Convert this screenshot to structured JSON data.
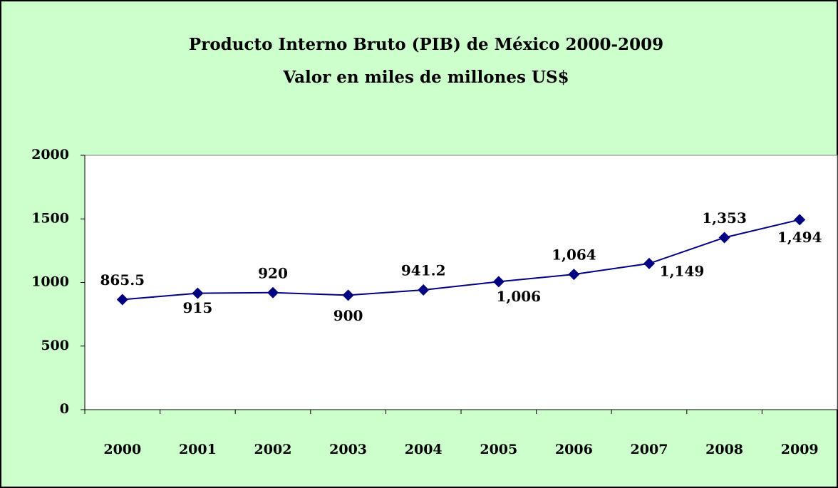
{
  "chart_data": {
    "type": "line",
    "title": "Producto Interno Bruto (PIB) de México 2000-2009",
    "subtitle": "Valor en miles de millones US$",
    "categories": [
      "2000",
      "2001",
      "2002",
      "2003",
      "2004",
      "2005",
      "2006",
      "2007",
      "2008",
      "2009"
    ],
    "series": [
      {
        "name": "PIB",
        "color": "#000080",
        "values": [
          865.5,
          915,
          920,
          900,
          941.2,
          1006,
          1064,
          1149,
          1353,
          1494
        ],
        "value_labels": [
          "865.5",
          "915",
          "920",
          "900",
          "941.2",
          "1,006",
          "1,064",
          "1,149",
          "1,353",
          "1,494"
        ]
      }
    ],
    "ylim": [
      0,
      2000
    ],
    "yticks": [
      0,
      500,
      1000,
      1500,
      2000
    ],
    "grid": false
  }
}
